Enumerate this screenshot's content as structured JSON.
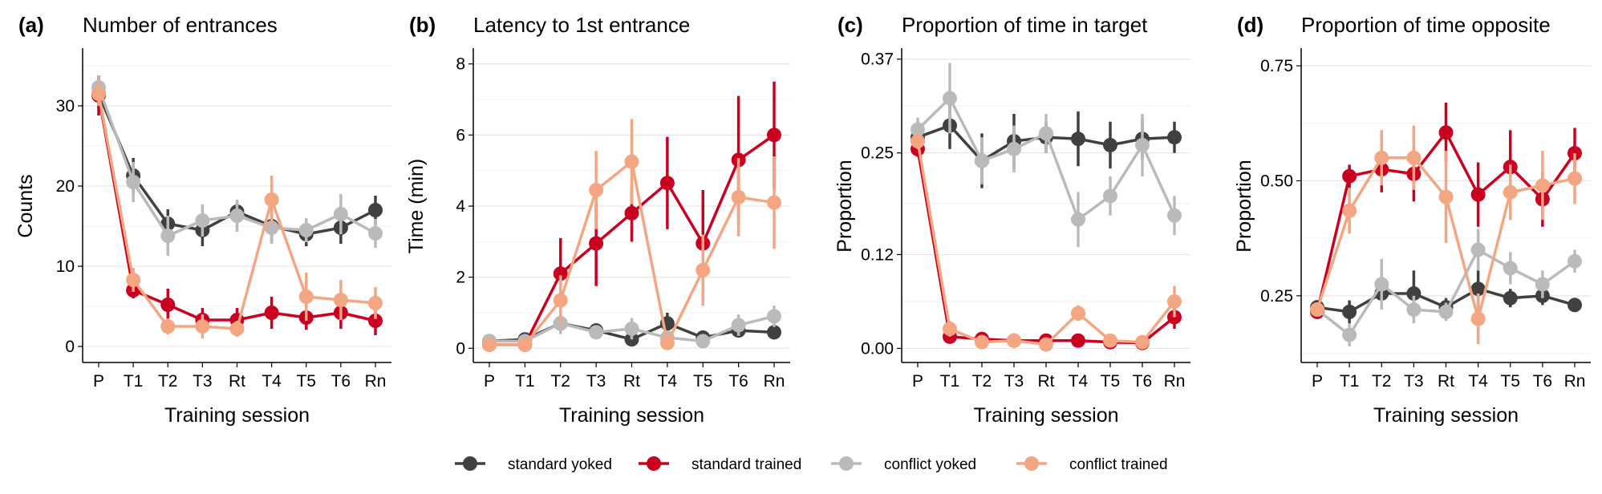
{
  "legend": {
    "items": [
      {
        "label": "standard yoked",
        "color": "#404040"
      },
      {
        "label": "standard trained",
        "color": "#CA0020"
      },
      {
        "label": "conflict yoked",
        "color": "#BABABA"
      },
      {
        "label": "conflict trained",
        "color": "#F4A582"
      }
    ],
    "placement": "bottom"
  },
  "chart_data": [
    {
      "panel": "(a)",
      "type": "line",
      "title": "Number of entrances",
      "xlabel": "Training session",
      "ylabel": "Counts",
      "categories": [
        "P",
        "T1",
        "T2",
        "T3",
        "Rt",
        "T4",
        "T5",
        "T6",
        "Rn"
      ],
      "ylim": [
        -2,
        37
      ],
      "yticks": [
        0,
        10,
        20,
        30
      ],
      "ytick_labels": [
        "0",
        "10",
        "20",
        "30"
      ],
      "grid": true,
      "series": [
        {
          "name": "standard yoked",
          "color": "#404040",
          "values": [
            31.5,
            21.3,
            15.3,
            14.5,
            16.8,
            15.0,
            14.0,
            14.8,
            17.0
          ],
          "err": [
            2.0,
            2.2,
            1.8,
            2.0,
            1.2,
            2.0,
            1.5,
            2.0,
            1.8
          ]
        },
        {
          "name": "standard trained",
          "color": "#CA0020",
          "values": [
            31.3,
            7.0,
            5.2,
            3.3,
            3.3,
            4.2,
            3.6,
            4.2,
            3.2
          ],
          "err": [
            2.5,
            1.0,
            2.0,
            1.5,
            1.5,
            2.0,
            1.5,
            2.0,
            1.8
          ]
        },
        {
          "name": "conflict yoked",
          "color": "#BABABA",
          "values": [
            32.3,
            20.5,
            13.8,
            15.7,
            16.3,
            14.8,
            14.5,
            16.5,
            14.1
          ],
          "err": [
            1.5,
            2.5,
            2.5,
            2.0,
            2.0,
            2.0,
            1.5,
            2.5,
            1.8
          ]
        },
        {
          "name": "conflict trained",
          "color": "#F4A582",
          "values": [
            31.5,
            8.3,
            2.5,
            2.5,
            2.2,
            18.3,
            6.2,
            5.8,
            5.4
          ],
          "err": [
            1.5,
            1.5,
            1.0,
            1.5,
            1.0,
            3.0,
            3.0,
            2.5,
            2.0
          ]
        }
      ]
    },
    {
      "panel": "(b)",
      "type": "line",
      "title": "Latency to 1st entrance",
      "xlabel": "Training session",
      "ylabel": "Time (min)",
      "categories": [
        "P",
        "T1",
        "T2",
        "T3",
        "Rt",
        "T4",
        "T5",
        "T6",
        "Rn"
      ],
      "ylim": [
        -0.4,
        8.4
      ],
      "yticks": [
        0,
        2,
        4,
        6,
        8
      ],
      "ytick_labels": [
        "0",
        "2",
        "4",
        "6",
        "8"
      ],
      "grid": true,
      "series": [
        {
          "name": "standard yoked",
          "color": "#404040",
          "values": [
            0.2,
            0.25,
            0.7,
            0.5,
            0.25,
            0.7,
            0.3,
            0.5,
            0.45
          ],
          "err": [
            0.1,
            0.1,
            0.2,
            0.2,
            0.1,
            0.3,
            0.2,
            0.2,
            0.2
          ]
        },
        {
          "name": "standard trained",
          "color": "#CA0020",
          "values": [
            0.1,
            0.1,
            2.1,
            2.95,
            3.8,
            4.65,
            2.95,
            5.3,
            6.0
          ],
          "err": [
            0.1,
            0.1,
            1.0,
            1.2,
            0.8,
            1.3,
            1.5,
            1.8,
            1.5
          ]
        },
        {
          "name": "conflict yoked",
          "color": "#BABABA",
          "values": [
            0.2,
            0.2,
            0.7,
            0.45,
            0.55,
            0.3,
            0.2,
            0.65,
            0.9
          ],
          "err": [
            0.1,
            0.1,
            0.3,
            0.2,
            0.3,
            0.2,
            0.1,
            0.3,
            0.3
          ]
        },
        {
          "name": "conflict trained",
          "color": "#F4A582",
          "values": [
            0.1,
            0.1,
            1.35,
            4.45,
            5.25,
            0.15,
            2.2,
            4.25,
            4.1
          ],
          "err": [
            0.1,
            0.1,
            0.7,
            1.1,
            1.2,
            0.1,
            1.0,
            1.1,
            1.3
          ]
        }
      ]
    },
    {
      "panel": "(c)",
      "type": "line",
      "title": "Proportion of time in target",
      "xlabel": "Training session",
      "ylabel": "Proportion",
      "categories": [
        "P",
        "T1",
        "T2",
        "T3",
        "Rt",
        "T4",
        "T5",
        "T6",
        "Rn"
      ],
      "ylim": [
        -0.018,
        0.382
      ],
      "yticks": [
        0.0,
        0.12,
        0.25,
        0.37
      ],
      "ytick_labels": [
        "0.00",
        "0.12",
        "0.25",
        "0.37"
      ],
      "grid": true,
      "series": [
        {
          "name": "standard yoked",
          "color": "#404040",
          "values": [
            0.27,
            0.285,
            0.24,
            0.265,
            0.27,
            0.268,
            0.26,
            0.268,
            0.27
          ],
          "err": [
            0.02,
            0.03,
            0.035,
            0.035,
            0.02,
            0.035,
            0.03,
            0.025,
            0.02
          ]
        },
        {
          "name": "standard trained",
          "color": "#CA0020",
          "values": [
            0.255,
            0.015,
            0.012,
            0.01,
            0.01,
            0.01,
            0.008,
            0.007,
            0.04
          ],
          "err": [
            0.01,
            0.005,
            0.005,
            0.005,
            0.005,
            0.005,
            0.005,
            0.005,
            0.015
          ]
        },
        {
          "name": "conflict yoked",
          "color": "#BABABA",
          "values": [
            0.28,
            0.32,
            0.24,
            0.255,
            0.275,
            0.165,
            0.195,
            0.26,
            0.17
          ],
          "err": [
            0.015,
            0.045,
            0.03,
            0.03,
            0.025,
            0.035,
            0.025,
            0.04,
            0.025
          ]
        },
        {
          "name": "conflict trained",
          "color": "#F4A582",
          "values": [
            0.265,
            0.025,
            0.008,
            0.01,
            0.005,
            0.045,
            0.01,
            0.008,
            0.06
          ],
          "err": [
            0.01,
            0.01,
            0.005,
            0.005,
            0.005,
            0.01,
            0.005,
            0.005,
            0.02
          ]
        }
      ]
    },
    {
      "panel": "(d)",
      "type": "line",
      "title": "Proportion of time opposite",
      "xlabel": "Training session",
      "ylabel": "Proportion",
      "categories": [
        "P",
        "T1",
        "T2",
        "T3",
        "Rt",
        "T4",
        "T5",
        "T6",
        "Rn"
      ],
      "ylim": [
        0.105,
        0.785
      ],
      "yticks": [
        0.25,
        0.5,
        0.75
      ],
      "ytick_labels": [
        "0.25",
        "0.50",
        "0.75"
      ],
      "grid": true,
      "series": [
        {
          "name": "standard yoked",
          "color": "#404040",
          "values": [
            0.225,
            0.215,
            0.255,
            0.255,
            0.225,
            0.265,
            0.245,
            0.25,
            0.23
          ],
          "err": [
            0.015,
            0.025,
            0.03,
            0.05,
            0.02,
            0.04,
            0.02,
            0.02,
            0.015
          ]
        },
        {
          "name": "standard trained",
          "color": "#CA0020",
          "values": [
            0.215,
            0.51,
            0.525,
            0.515,
            0.605,
            0.47,
            0.53,
            0.46,
            0.56
          ],
          "err": [
            0.01,
            0.025,
            0.05,
            0.06,
            0.065,
            0.07,
            0.08,
            0.06,
            0.055
          ]
        },
        {
          "name": "conflict yoked",
          "color": "#BABABA",
          "values": [
            0.22,
            0.165,
            0.275,
            0.22,
            0.215,
            0.35,
            0.31,
            0.275,
            0.325
          ],
          "err": [
            0.015,
            0.025,
            0.055,
            0.03,
            0.02,
            0.045,
            0.035,
            0.03,
            0.025
          ]
        },
        {
          "name": "conflict trained",
          "color": "#F4A582",
          "values": [
            0.22,
            0.435,
            0.55,
            0.55,
            0.465,
            0.2,
            0.475,
            0.49,
            0.505
          ],
          "err": [
            0.01,
            0.05,
            0.06,
            0.07,
            0.1,
            0.055,
            0.06,
            0.075,
            0.055
          ]
        }
      ]
    }
  ]
}
